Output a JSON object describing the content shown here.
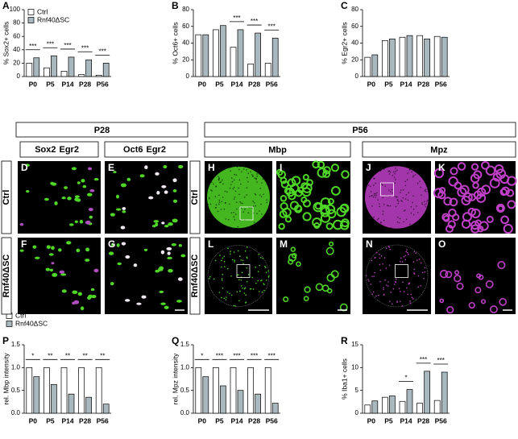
{
  "chart_data": [
    {
      "type": "bar",
      "panel": "A",
      "ylabel": "% Sox2+ cells",
      "categories": [
        "P0",
        "P5",
        "P14",
        "P28",
        "P56"
      ],
      "ylim": [
        0,
        100
      ],
      "yticks": [
        0,
        20,
        40,
        60,
        80,
        100
      ],
      "legend": "top-left",
      "series": [
        {
          "name": "Ctrl",
          "color": "#ffffff",
          "values": [
            20,
            13,
            8,
            3,
            2
          ]
        },
        {
          "name": "Rnf40ΔSC",
          "color": "#a9b7bf",
          "values": [
            28,
            31,
            29,
            25,
            20
          ]
        }
      ],
      "significance": [
        "***",
        "***",
        "***",
        "***",
        "***"
      ]
    },
    {
      "type": "bar",
      "panel": "B",
      "ylabel": "% Oct6+ cells",
      "categories": [
        "P0",
        "P5",
        "P14",
        "P28",
        "P56"
      ],
      "ylim": [
        0,
        80
      ],
      "yticks": [
        0,
        20,
        40,
        60,
        80
      ],
      "series": [
        {
          "color": "#ffffff",
          "values": [
            50,
            56,
            35,
            15,
            16
          ]
        },
        {
          "color": "#a9b7bf",
          "values": [
            50,
            61,
            56,
            52,
            46
          ]
        }
      ],
      "significance": [
        null,
        null,
        "***",
        "***",
        "***"
      ]
    },
    {
      "type": "bar",
      "panel": "C",
      "ylabel": "% Egr2+ cells",
      "categories": [
        "P0",
        "P5",
        "P14",
        "P28",
        "P56"
      ],
      "ylim": [
        0,
        80
      ],
      "yticks": [
        0,
        20,
        40,
        60,
        80
      ],
      "series": [
        {
          "color": "#ffffff",
          "values": [
            23,
            43,
            47,
            49,
            48
          ]
        },
        {
          "color": "#a9b7bf",
          "values": [
            26,
            45,
            49,
            45,
            47
          ]
        }
      ],
      "significance": [
        null,
        null,
        null,
        null,
        null
      ]
    },
    {
      "type": "bar",
      "panel": "P",
      "ylabel": "rel. Mbp intensity",
      "categories": [
        "P0",
        "P5",
        "P14",
        "P28",
        "P56"
      ],
      "ylim": [
        0,
        1.5
      ],
      "yticks": [
        {
          "value": 0,
          "label": "0.0"
        },
        0.5,
        {
          "value": 1,
          "label": "1.0"
        },
        1.5
      ],
      "legend": "above",
      "series": [
        {
          "name": "Ctrl",
          "color": "#ffffff",
          "values": [
            1,
            1,
            1,
            1,
            1
          ]
        },
        {
          "name": "Rnf40ΔSC",
          "color": "#a9b7bf",
          "values": [
            0.8,
            0.63,
            0.42,
            0.35,
            0.2
          ]
        }
      ],
      "significance": [
        "*",
        "**",
        "**",
        "**",
        "**"
      ]
    },
    {
      "type": "bar",
      "panel": "Q",
      "ylabel": "rel. Mpz intensity",
      "categories": [
        "P0",
        "P5",
        "P14",
        "P28",
        "P56"
      ],
      "ylim": [
        0,
        1.5
      ],
      "yticks": [
        {
          "value": 0,
          "label": "0.0"
        },
        0.5,
        {
          "value": 1,
          "label": "1.0"
        },
        1.5
      ],
      "series": [
        {
          "color": "#ffffff",
          "values": [
            1,
            1,
            1,
            1,
            1
          ]
        },
        {
          "color": "#a9b7bf",
          "values": [
            0.8,
            0.6,
            0.5,
            0.42,
            0.22
          ]
        }
      ],
      "significance": [
        "*",
        "***",
        "***",
        "***",
        "***"
      ]
    },
    {
      "type": "bar",
      "panel": "R",
      "ylabel": "% Iba1+ cells",
      "categories": [
        "P0",
        "P5",
        "P14",
        "P28",
        "P56"
      ],
      "ylim": [
        0,
        15
      ],
      "yticks": [
        0,
        5,
        10,
        15
      ],
      "series": [
        {
          "color": "#ffffff",
          "values": [
            1.8,
            3.5,
            2.6,
            2.2,
            2.8
          ]
        },
        {
          "color": "#a9b7bf",
          "values": [
            2.7,
            3.8,
            5.2,
            9.2,
            9
          ]
        }
      ],
      "significance": [
        null,
        null,
        "*",
        "***",
        "***"
      ]
    }
  ],
  "micrographs": {
    "ages": [
      "P28",
      "P56"
    ],
    "stains": [
      [
        "Sox2",
        "Egr2"
      ],
      [
        "Oct6",
        "Egr2"
      ]
    ],
    "markers": [
      "Mbp",
      "Mpz"
    ],
    "rows": [
      "Ctrl",
      "Rnf40ΔSC"
    ],
    "panels": [
      "D",
      "E",
      "F",
      "G",
      "H",
      "I",
      "J",
      "K",
      "L",
      "M",
      "N",
      "O"
    ]
  }
}
